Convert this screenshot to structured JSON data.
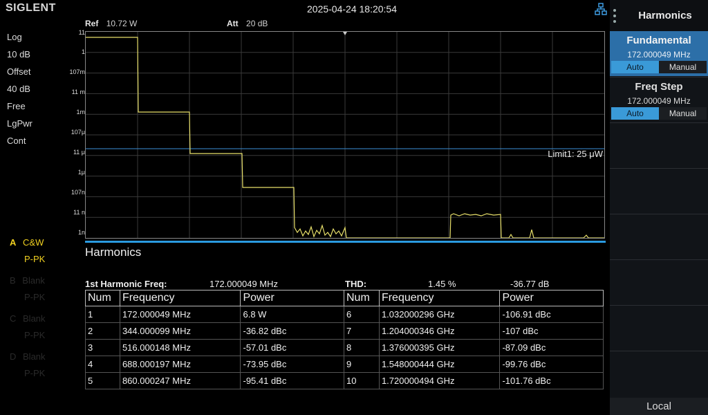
{
  "header": {
    "brand": "SIGLENT",
    "datetime": "2025-04-24 18:20:54",
    "ref_label": "Ref",
    "ref_value": "10.72 W",
    "att_label": "Att",
    "att_value": "20 dB"
  },
  "left_panel": {
    "items": [
      "Log",
      "10 dB",
      "Offset",
      "40 dB",
      "Free",
      "LgPwr",
      "Cont"
    ],
    "traces": [
      {
        "letter": "A",
        "mode": "C&W",
        "detector": "P-PK",
        "active": true
      },
      {
        "letter": "B",
        "mode": "Blank",
        "detector": "P-PK",
        "active": false
      },
      {
        "letter": "C",
        "mode": "Blank",
        "detector": "P-PK",
        "active": false
      },
      {
        "letter": "D",
        "mode": "Blank",
        "detector": "P-PK",
        "active": false
      }
    ]
  },
  "plot": {
    "y_labels": [
      "11",
      "1",
      "107m",
      "11 m",
      "1m",
      "107μ",
      "11 μ",
      "1μ",
      "107n",
      "11 n",
      "1n"
    ],
    "limit_label": "Limit1: 25 μW",
    "colors": {
      "trace": "#e8e06a",
      "limit": "#3b8fd8",
      "grid": "#3a3a3a"
    }
  },
  "harmonics": {
    "title": "Harmonics",
    "first_label": "1st Harmonic Freq:",
    "first_value": "172.000049 MHz",
    "thd_label": "THD:",
    "thd_percent": "1.45 %",
    "thd_db": "-36.77 dB",
    "headers": [
      "Num",
      "Frequency",
      "Power"
    ],
    "rows_left": [
      [
        "1",
        "172.000049 MHz",
        "6.8 W"
      ],
      [
        "2",
        "344.000099 MHz",
        "-36.82 dBc"
      ],
      [
        "3",
        "516.000148 MHz",
        "-57.01 dBc"
      ],
      [
        "4",
        "688.000197 MHz",
        "-73.95 dBc"
      ],
      [
        "5",
        "860.000247 MHz",
        "-95.41 dBc"
      ]
    ],
    "rows_right": [
      [
        "6",
        "1.032000296 GHz",
        "-106.91 dBc"
      ],
      [
        "7",
        "1.204000346 GHz",
        "-107 dBc"
      ],
      [
        "8",
        "1.376000395 GHz",
        "-87.09 dBc"
      ],
      [
        "9",
        "1.548000444 GHz",
        "-99.76 dBc"
      ],
      [
        "10",
        "1.720000494 GHz",
        "-101.76 dBc"
      ]
    ]
  },
  "menu": {
    "title": "Harmonics",
    "fundamental": {
      "label": "Fundamental",
      "value": "172.000049 MHz",
      "auto": "Auto",
      "manual": "Manual"
    },
    "freq_step": {
      "label": "Freq Step",
      "value": "172.000049 MHz",
      "auto": "Auto",
      "manual": "Manual"
    },
    "local": "Local"
  }
}
